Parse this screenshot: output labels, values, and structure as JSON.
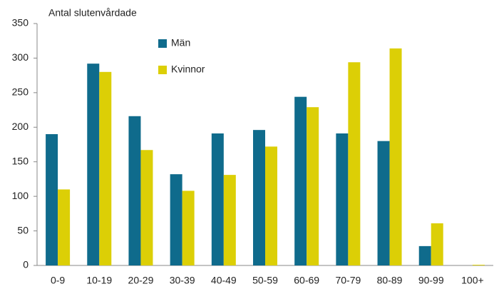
{
  "chart_data": {
    "type": "bar",
    "title": "Antal slutenvårdade",
    "categories": [
      "0-9",
      "10-19",
      "20-29",
      "30-39",
      "40-49",
      "50-59",
      "60-69",
      "70-79",
      "80-89",
      "90-99",
      "100+"
    ],
    "series": [
      {
        "name": "Män",
        "color": "#0f6b8c",
        "values": [
          190,
          292,
          216,
          132,
          191,
          196,
          244,
          191,
          180,
          28,
          0
        ]
      },
      {
        "name": "Kvinnor",
        "color": "#dccf06",
        "values": [
          110,
          280,
          167,
          108,
          131,
          172,
          229,
          294,
          314,
          61,
          1
        ]
      }
    ],
    "ylim": [
      0,
      350
    ],
    "yticks": [
      0,
      50,
      100,
      150,
      200,
      250,
      300,
      350
    ],
    "grid": false
  }
}
